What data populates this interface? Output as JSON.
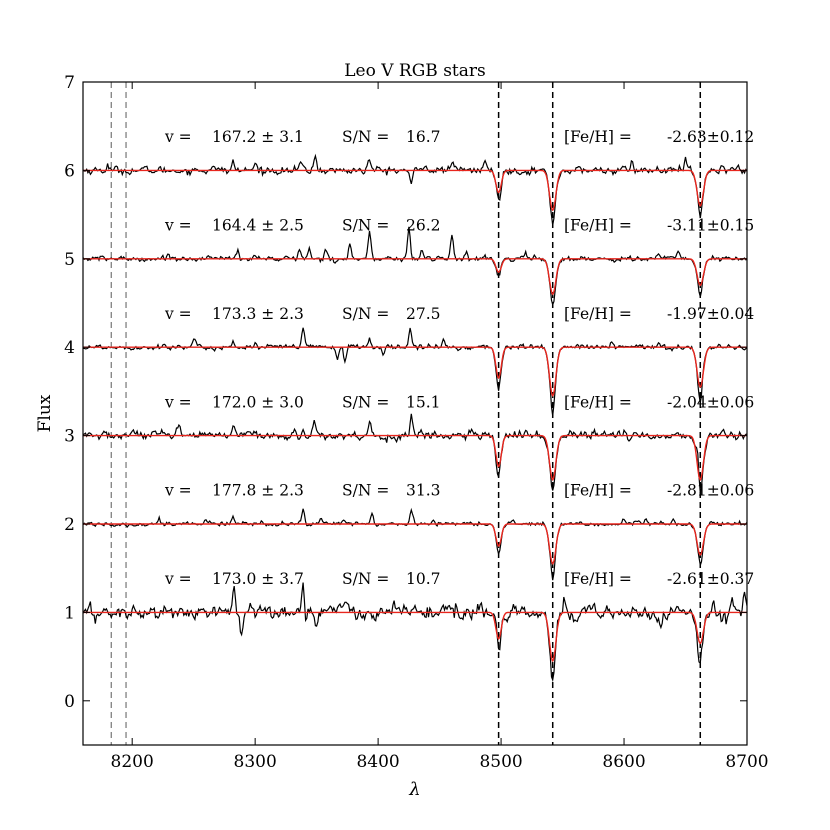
{
  "chart_data": {
    "type": "line",
    "title": "Leo V RGB stars",
    "xlabel": "λ",
    "ylabel": "Flux",
    "xlim": [
      8160,
      8700
    ],
    "ylim": [
      -0.5,
      7
    ],
    "xticks": [
      8200,
      8300,
      8400,
      8500,
      8600,
      8700
    ],
    "yticks": [
      0,
      1,
      2,
      3,
      4,
      5,
      6,
      7
    ],
    "grid": false,
    "legend": "none",
    "colors": {
      "spectrum": "#000000",
      "model": "#e8261e",
      "axis": "#000000",
      "reference_line": "#000000",
      "sky_line": "#808080"
    },
    "reference_lines": [
      8498,
      8542,
      8662
    ],
    "sky_lines": [
      8183,
      8195
    ],
    "stars": [
      {
        "offset": 6,
        "v_label": "v =",
        "v": "167.2 ± 3.1",
        "sn_label": "S/N =",
        "sn": "16.7",
        "feh_label": "[Fe/H] =",
        "feh": "-2.63±0.12",
        "depths": [
          0.25,
          0.45,
          0.4
        ],
        "noise": 0.035,
        "spikes": [
          [
            8180,
            0.06
          ],
          [
            8265,
            0.07
          ],
          [
            8282,
            0.09
          ],
          [
            8300,
            0.08
          ],
          [
            8337,
            0.09
          ],
          [
            8349,
            0.16
          ],
          [
            8393,
            0.13
          ],
          [
            8427,
            -0.18
          ],
          [
            8438,
            0.1
          ],
          [
            8460,
            0.12
          ],
          [
            8487,
            0.12
          ],
          [
            8606,
            0.1
          ],
          [
            8650,
            0.11
          ],
          [
            8680,
            0.08
          ]
        ]
      },
      {
        "offset": 5,
        "v_label": "v =",
        "v": "164.4 ± 2.5",
        "sn_label": "S/N =",
        "sn": "26.2",
        "feh_label": "[Fe/H] =",
        "feh": "-3.11±0.15",
        "depths": [
          0.15,
          0.4,
          0.3
        ],
        "noise": 0.025,
        "spikes": [
          [
            8230,
            0.07
          ],
          [
            8262,
            0.08
          ],
          [
            8286,
            0.09
          ],
          [
            8300,
            0.06
          ],
          [
            8336,
            0.12
          ],
          [
            8344,
            0.1
          ],
          [
            8358,
            0.12
          ],
          [
            8377,
            0.16
          ],
          [
            8393,
            0.3
          ],
          [
            8425,
            0.35
          ],
          [
            8436,
            0.1
          ],
          [
            8460,
            0.28
          ],
          [
            8472,
            0.08
          ],
          [
            8520,
            0.08
          ],
          [
            8628,
            0.06
          ],
          [
            8644,
            0.08
          ]
        ]
      },
      {
        "offset": 4,
        "v_label": "v =",
        "v": "173.3 ± 2.3",
        "sn_label": "S/N =",
        "sn": "27.5",
        "feh_label": "[Fe/H] =",
        "feh": "-1.97±0.04",
        "depths": [
          0.35,
          0.55,
          0.45
        ],
        "noise": 0.025,
        "spikes": [
          [
            8225,
            0.05
          ],
          [
            8250,
            0.06
          ],
          [
            8282,
            0.06
          ],
          [
            8300,
            0.04
          ],
          [
            8339,
            0.22
          ],
          [
            8367,
            -0.12
          ],
          [
            8373,
            -0.15
          ],
          [
            8393,
            0.13
          ],
          [
            8404,
            -0.07
          ],
          [
            8426,
            0.22
          ],
          [
            8453,
            0.08
          ],
          [
            8590,
            0.05
          ],
          [
            8628,
            0.06
          ],
          [
            8665,
            0.06
          ]
        ]
      },
      {
        "offset": 3,
        "v_label": "v =",
        "v": "172.0 ± 3.0",
        "sn_label": "S/N =",
        "sn": "15.1",
        "feh_label": "[Fe/H] =",
        "feh": "-2.04±0.06",
        "depths": [
          0.35,
          0.5,
          0.5
        ],
        "noise": 0.04,
        "spikes": [
          [
            8200,
            0.06
          ],
          [
            8238,
            0.08
          ],
          [
            8283,
            0.06
          ],
          [
            8301,
            0.05
          ],
          [
            8339,
            0.09
          ],
          [
            8348,
            0.16
          ],
          [
            8393,
            0.16
          ],
          [
            8405,
            -0.07
          ],
          [
            8427,
            0.25
          ],
          [
            8440,
            0.07
          ],
          [
            8520,
            0.07
          ],
          [
            8540,
            0.06
          ],
          [
            8600,
            0.05
          ],
          [
            8660,
            0.2
          ],
          [
            8680,
            0.06
          ]
        ]
      },
      {
        "offset": 2,
        "v_label": "v =",
        "v": "177.8 ± 2.3",
        "sn_label": "S/N =",
        "sn": "31.3",
        "feh_label": "[Fe/H] =",
        "feh": "-2.81±0.06",
        "depths": [
          0.25,
          0.45,
          0.35
        ],
        "noise": 0.02,
        "spikes": [
          [
            8222,
            0.05
          ],
          [
            8260,
            0.05
          ],
          [
            8282,
            0.08
          ],
          [
            8305,
            0.04
          ],
          [
            8339,
            0.18
          ],
          [
            8354,
            0.06
          ],
          [
            8372,
            0.05
          ],
          [
            8395,
            0.13
          ],
          [
            8427,
            0.17
          ],
          [
            8445,
            0.06
          ],
          [
            8510,
            0.05
          ],
          [
            8600,
            0.05
          ],
          [
            8618,
            0.05
          ],
          [
            8640,
            0.06
          ]
        ]
      },
      {
        "offset": 1,
        "v_label": "v =",
        "v": "173.0 ± 3.7",
        "sn_label": "S/N =",
        "sn": "10.7",
        "feh_label": "[Fe/H] =",
        "feh": "-2.61±0.37",
        "depths": [
          0.3,
          0.55,
          0.35
        ],
        "noise": 0.065,
        "spikes": [
          [
            8170,
            -0.08
          ],
          [
            8240,
            0.08
          ],
          [
            8283,
            0.25
          ],
          [
            8289,
            -0.28
          ],
          [
            8304,
            0.07
          ],
          [
            8339,
            0.33
          ],
          [
            8341,
            -0.12
          ],
          [
            8350,
            -0.18
          ],
          [
            8361,
            0.12
          ],
          [
            8374,
            0.14
          ],
          [
            8388,
            -0.1
          ],
          [
            8413,
            0.1
          ],
          [
            8425,
            -0.1
          ],
          [
            8452,
            0.12
          ],
          [
            8552,
            0.12
          ],
          [
            8575,
            0.12
          ],
          [
            8630,
            -0.1
          ],
          [
            8660,
            -0.12
          ],
          [
            8688,
            0.14
          ],
          [
            8698,
            0.2
          ]
        ]
      }
    ]
  }
}
